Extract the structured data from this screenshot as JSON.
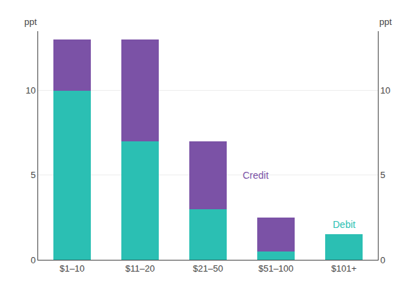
{
  "chart_data": {
    "type": "bar",
    "stacked": true,
    "categories": [
      "$1–10",
      "$11–20",
      "$21–50",
      "$51–100",
      "$101+"
    ],
    "series": [
      {
        "name": "Debit",
        "color": "#2bbfb3",
        "values": [
          10.0,
          7.0,
          3.0,
          0.5,
          1.5
        ]
      },
      {
        "name": "Credit",
        "color": "#7b52a6",
        "values": [
          3.0,
          6.0,
          4.0,
          2.0,
          0.0
        ]
      }
    ],
    "ylabel": "ppt",
    "y2label": "ppt",
    "ylim": [
      0,
      13.5
    ],
    "yticks": [
      0,
      5,
      10
    ],
    "y2lim": [
      0,
      13.5
    ],
    "y2ticks": [
      0,
      5,
      10
    ],
    "grid": true
  }
}
